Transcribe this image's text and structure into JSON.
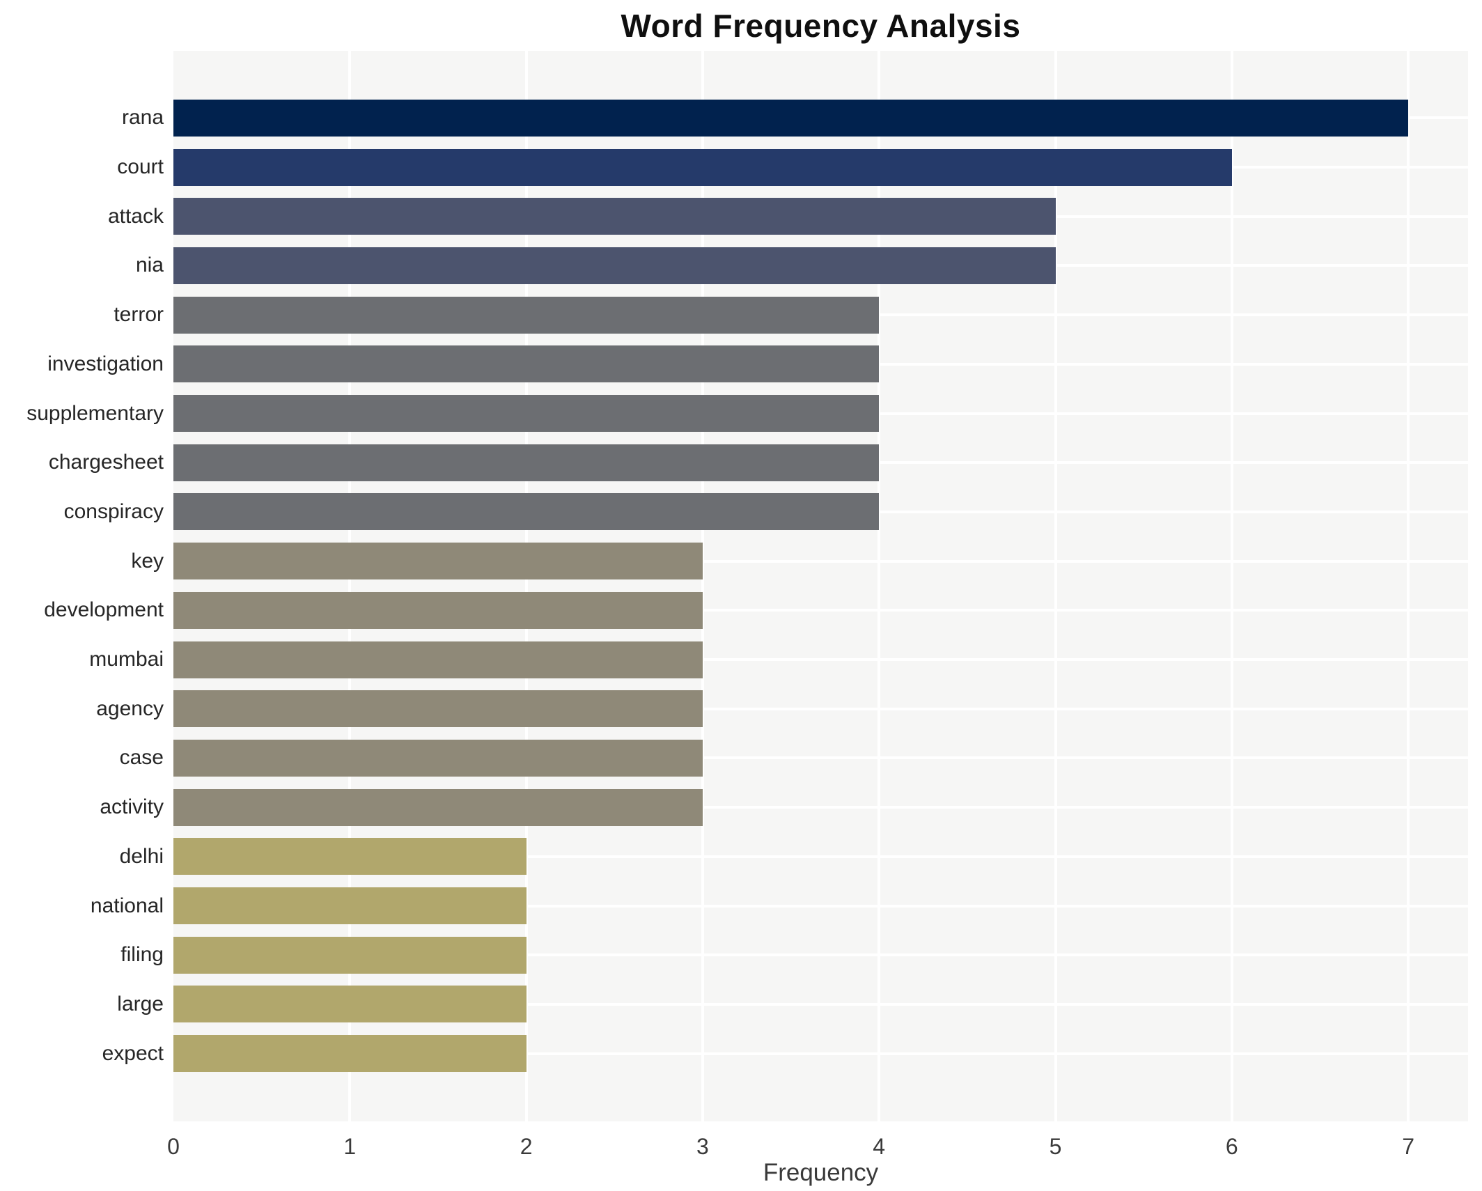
{
  "chart_data": {
    "type": "bar",
    "orientation": "horizontal",
    "title": "Word Frequency Analysis",
    "xlabel": "Frequency",
    "ylabel": "",
    "categories": [
      "rana",
      "court",
      "attack",
      "nia",
      "terror",
      "investigation",
      "supplementary",
      "chargesheet",
      "conspiracy",
      "key",
      "development",
      "mumbai",
      "agency",
      "case",
      "activity",
      "delhi",
      "national",
      "filing",
      "large",
      "expect"
    ],
    "values": [
      7,
      6,
      5,
      5,
      4,
      4,
      4,
      4,
      4,
      3,
      3,
      3,
      3,
      3,
      3,
      2,
      2,
      2,
      2,
      2
    ],
    "xticks": [
      0,
      1,
      2,
      3,
      4,
      5,
      6,
      7
    ],
    "xlim": [
      0,
      7.34
    ],
    "grid": true,
    "legend": false,
    "value_colors": {
      "7": "#01224e",
      "6": "#253a6a",
      "5": "#4c546e",
      "4": "#6c6e72",
      "3": "#8f8978",
      "2": "#b1a76c"
    },
    "colors": {
      "page_bg": "#ffffff",
      "plot_bg": "#f6f6f5",
      "gridline": "#ffffff",
      "title_text": "#0f0f0f",
      "tick_text": "#262626",
      "axis_label_text": "#3a3a3a"
    }
  }
}
